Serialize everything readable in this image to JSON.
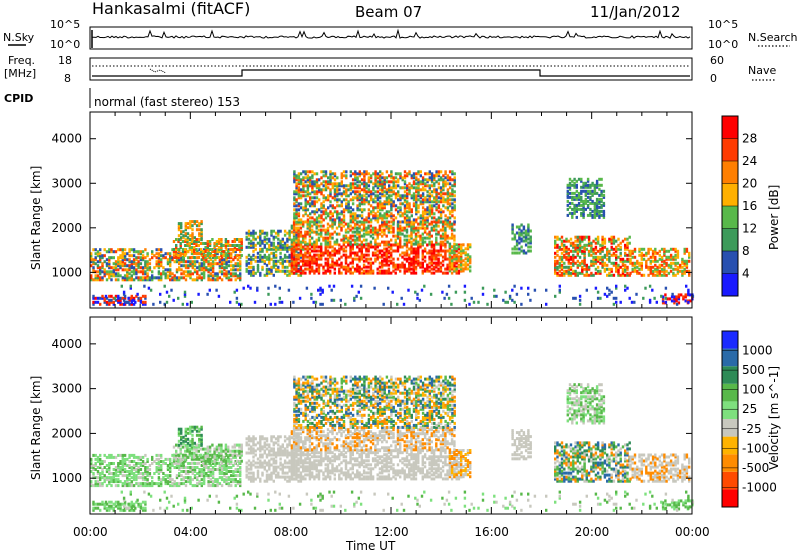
{
  "header": {
    "station": "Hankasalmi (fitACF)",
    "beam": "Beam 07",
    "date": "11/Jan/2012"
  },
  "top_panels": {
    "nsky_label": "N.Sky",
    "nsky_ticks": [
      "10^5",
      "10^0"
    ],
    "nsearch_label": "N.Search",
    "nsearch_ticks": [
      "10^5",
      "10^0"
    ],
    "freq_label_1": "Freq.",
    "freq_label_2": "[MHz]",
    "freq_ticks": [
      "18",
      "8"
    ],
    "nave_label": "Nave",
    "nave_ticks": [
      "60",
      "0"
    ],
    "cpid_label": "CPID",
    "cpid_text": "normal (fast stereo) 153"
  },
  "colors": {
    "power_scale": [
      "#1a1aff",
      "#2850b0",
      "#3c9a5a",
      "#58b84a",
      "#ffb000",
      "#ff7f00",
      "#ff3a00",
      "#ff0000"
    ],
    "velocity_scale": [
      "#ff0000",
      "#ff4a00",
      "#ff8c00",
      "#ffb300",
      "#c8c8be",
      "#7ee07e",
      "#58b84a",
      "#2e8b57",
      "#2a6aa8",
      "#1a2aff"
    ],
    "ground_scatter": "#c8c8be"
  },
  "chart_data": [
    {
      "type": "heatmap",
      "title": "Power",
      "xlabel": "Time UT",
      "ylabel": "Slant Range [km]",
      "x_ticks": [
        "00:00",
        "04:00",
        "08:00",
        "12:00",
        "16:00",
        "20:00",
        "00:00"
      ],
      "y_ticks": [
        "1000",
        "2000",
        "3000",
        "4000"
      ],
      "ylim": [
        200,
        4600
      ],
      "colorbar_label": "Power [dB]",
      "colorbar_ticks": [
        "4",
        "8",
        "12",
        "16",
        "20",
        "24",
        "28"
      ]
    },
    {
      "type": "heatmap",
      "title": "Velocity",
      "xlabel": "Time UT",
      "ylabel": "Slant Range [km]",
      "x_ticks": [
        "00:00",
        "04:00",
        "08:00",
        "12:00",
        "16:00",
        "20:00",
        "00:00"
      ],
      "y_ticks": [
        "1000",
        "2000",
        "3000",
        "4000"
      ],
      "ylim": [
        200,
        4600
      ],
      "colorbar_label": "Velocity [m s^-1]",
      "colorbar_ticks": [
        "1000",
        "500",
        "100",
        "25",
        "-25",
        "-100",
        "-500",
        "-1000"
      ]
    }
  ]
}
